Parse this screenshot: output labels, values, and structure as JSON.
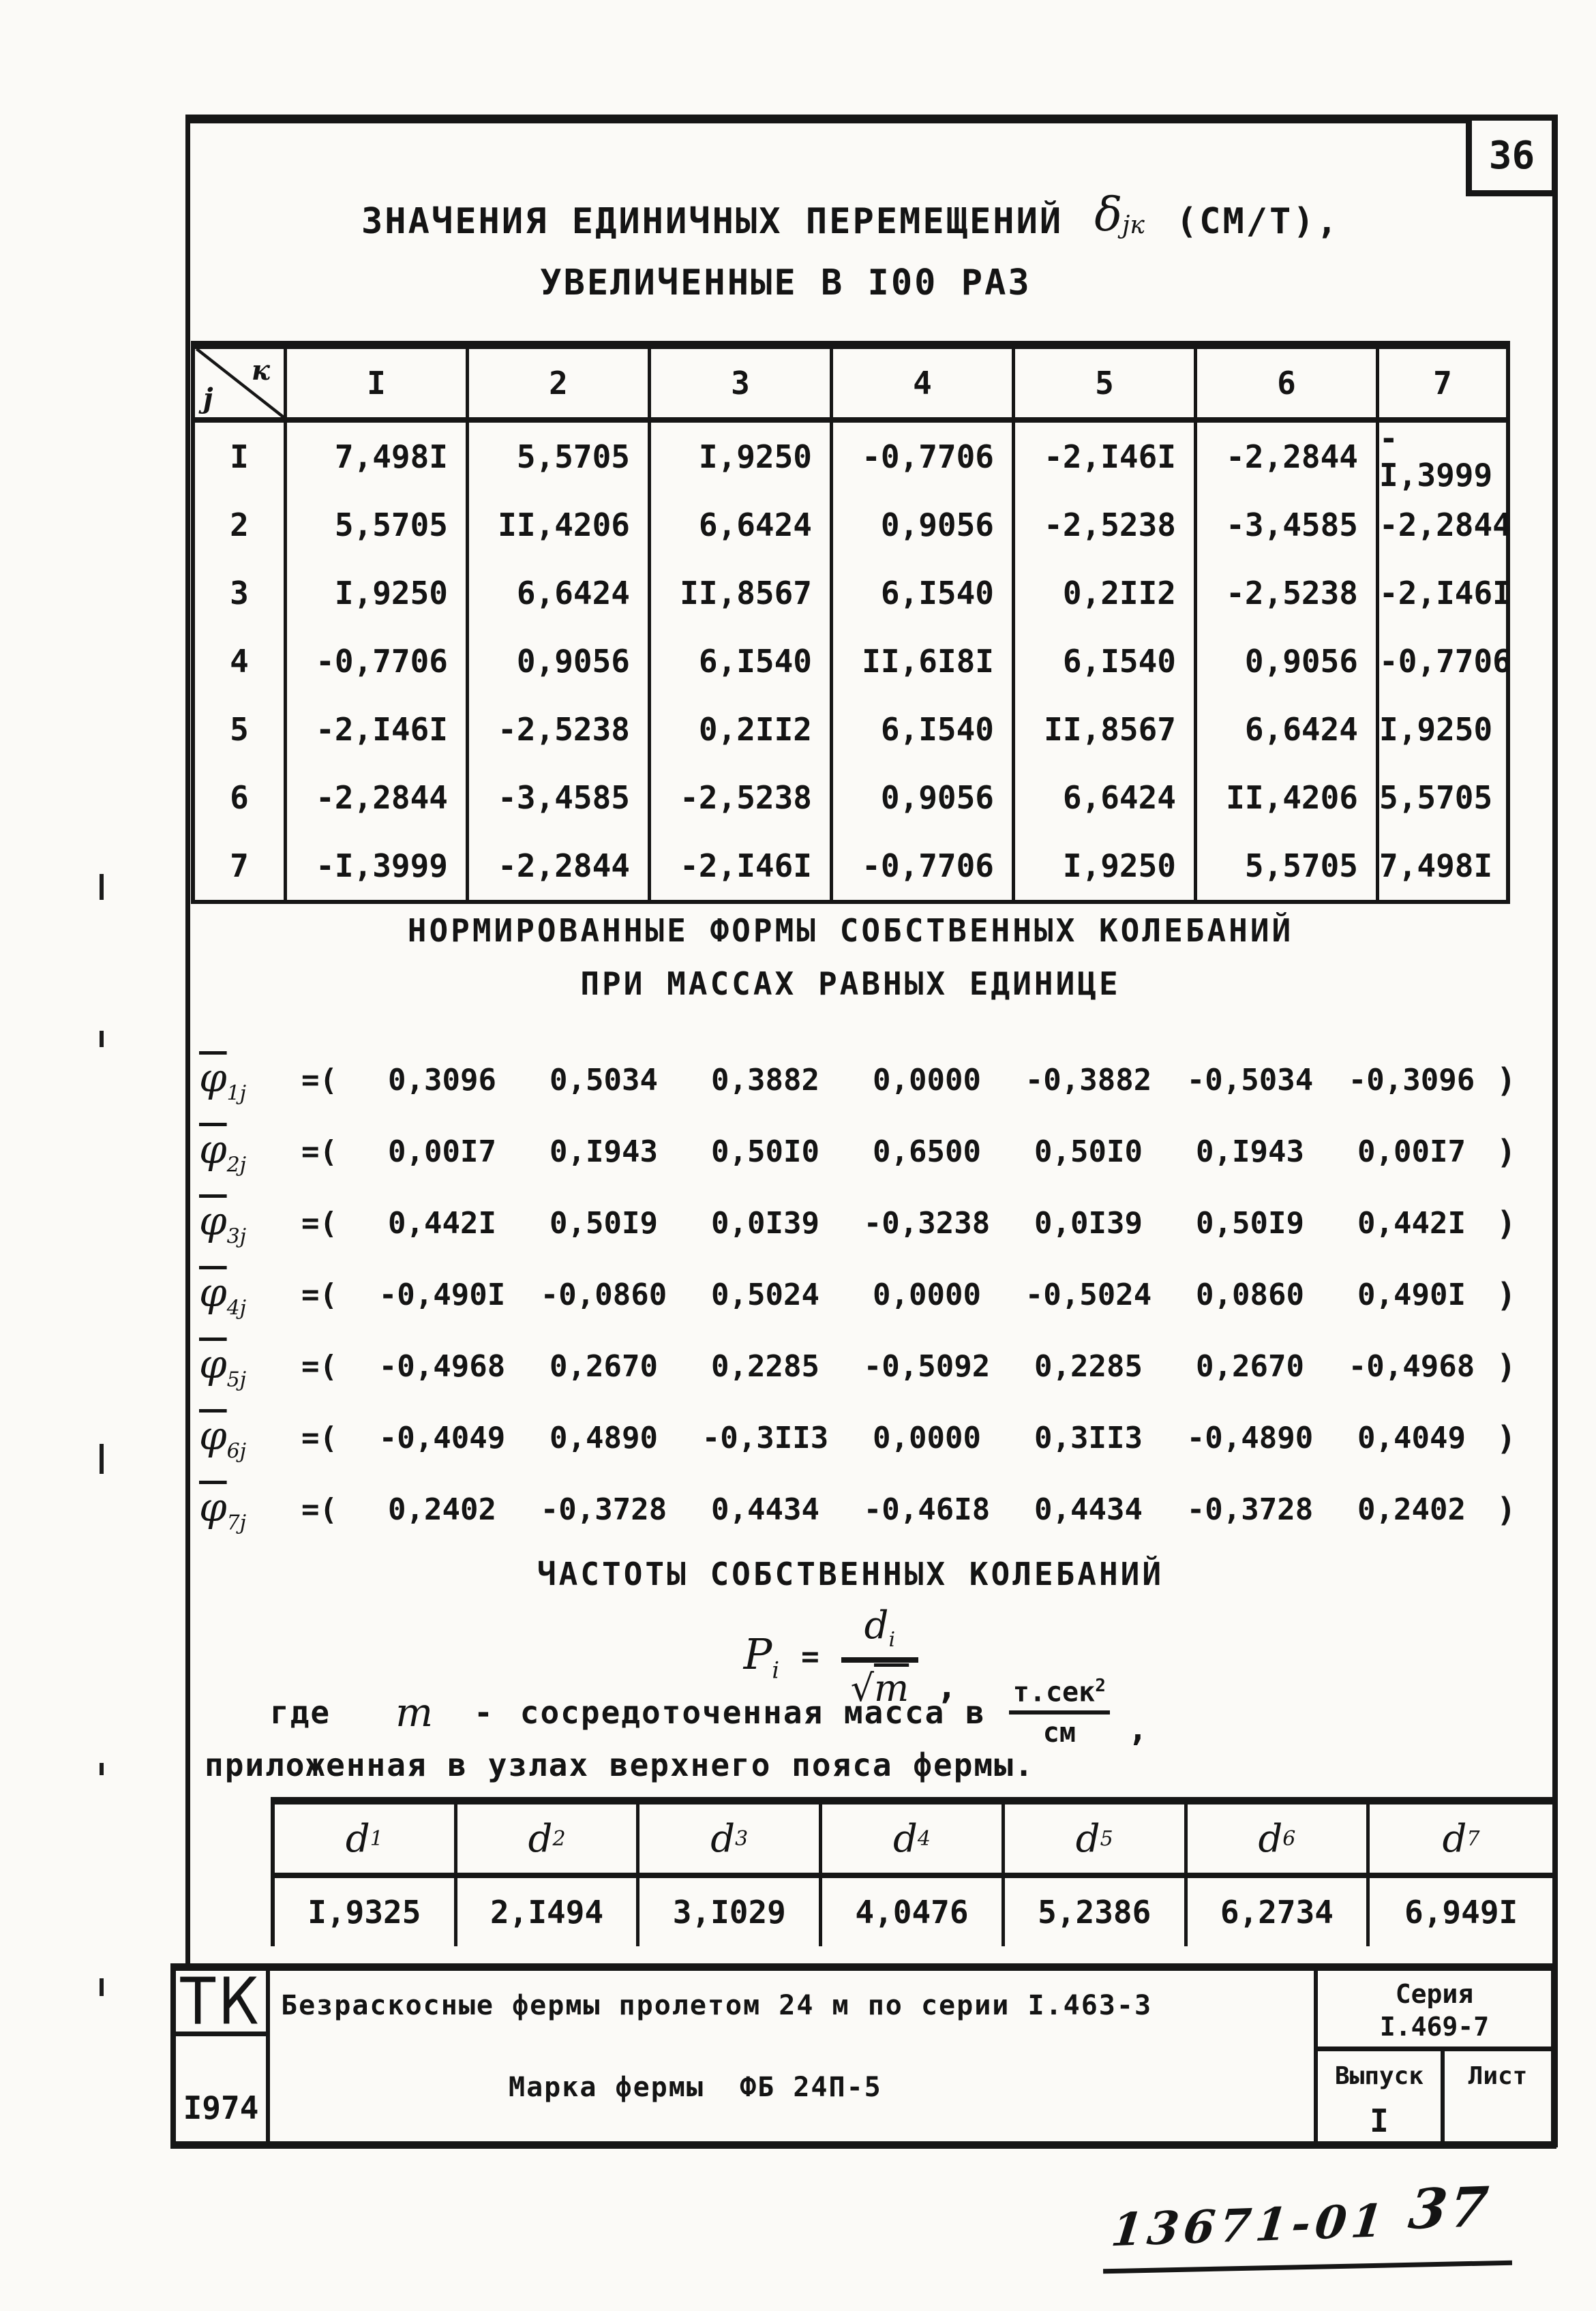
{
  "colors": {
    "paper": "#fbfaf7",
    "ink": "#161616"
  },
  "page": {
    "number": "36",
    "handwritten_part1": "13671-01",
    "handwritten_part2": "37"
  },
  "header": {
    "title_line1_prefix": "ЗНАЧЕНИЯ ЕДИНИЧНЫХ ПЕРЕМЕЩЕНИЙ",
    "delta_symbol": "δ",
    "delta_subscript": "jк",
    "units": "(СМ/Т),",
    "title_line2": "УВЕЛИЧЕННЫЕ В I00 РАЗ"
  },
  "matrix_table": {
    "corner_top": "к",
    "corner_bottom": "j",
    "col_headers": [
      "I",
      "2",
      "3",
      "4",
      "5",
      "6",
      "7"
    ],
    "rows": [
      {
        "label": "I",
        "values": [
          "7,498I",
          "5,5705",
          "I,9250",
          "-0,7706",
          "-2,I46I",
          "-2,2844",
          "-I,3999"
        ]
      },
      {
        "label": "2",
        "values": [
          "5,5705",
          "II,4206",
          "6,6424",
          "0,9056",
          "-2,5238",
          "-3,4585",
          "-2,2844"
        ]
      },
      {
        "label": "3",
        "values": [
          "I,9250",
          "6,6424",
          "II,8567",
          "6,I540",
          "0,2II2",
          "-2,5238",
          "-2,I46I"
        ]
      },
      {
        "label": "4",
        "values": [
          "-0,7706",
          "0,9056",
          "6,I540",
          "II,6I8I",
          "6,I540",
          "0,9056",
          "-0,7706"
        ]
      },
      {
        "label": "5",
        "values": [
          "-2,I46I",
          "-2,5238",
          "0,2II2",
          "6,I540",
          "II,8567",
          "6,6424",
          "I,9250"
        ]
      },
      {
        "label": "6",
        "values": [
          "-2,2844",
          "-3,4585",
          "-2,5238",
          "0,9056",
          "6,6424",
          "II,4206",
          "5,5705"
        ]
      },
      {
        "label": "7",
        "values": [
          "-I,3999",
          "-2,2844",
          "-2,I46I",
          "-0,7706",
          "I,9250",
          "5,5705",
          "7,498I"
        ]
      }
    ]
  },
  "modes_section": {
    "title_line1": "НОРМИРОВАННЫЕ ФОРМЫ СОБСТВЕННЫХ КОЛЕБАНИЙ",
    "title_line2": "ПРИ МАССАХ РАВНЫХ ЕДИНИЦЕ",
    "phi_symbol": "φ",
    "rows": [
      {
        "sub": "1j",
        "open": "=(",
        "close": ")",
        "values": [
          "0,3096",
          "0,5034",
          "0,3882",
          "0,0000",
          "-0,3882",
          "-0,5034",
          "-0,3096"
        ]
      },
      {
        "sub": "2j",
        "open": "=(",
        "close": ")",
        "values": [
          "0,00I7",
          "0,I943",
          "0,50I0",
          "0,6500",
          "0,50I0",
          "0,I943",
          "0,00I7"
        ]
      },
      {
        "sub": "3j",
        "open": "=(",
        "close": ")",
        "values": [
          "0,442I",
          "0,50I9",
          "0,0I39",
          "-0,3238",
          "0,0I39",
          "0,50I9",
          "0,442I"
        ]
      },
      {
        "sub": "4j",
        "open": "=(",
        "close": ")",
        "values": [
          "-0,490I",
          "-0,0860",
          "0,5024",
          "0,0000",
          "-0,5024",
          "0,0860",
          "0,490I"
        ]
      },
      {
        "sub": "5j",
        "open": "=(",
        "close": ")",
        "values": [
          "-0,4968",
          "0,2670",
          "0,2285",
          "-0,5092",
          "0,2285",
          "0,2670",
          "-0,4968"
        ]
      },
      {
        "sub": "6j",
        "open": "=(",
        "close": ")",
        "values": [
          "-0,4049",
          "0,4890",
          "-0,3II3",
          "0,0000",
          "0,3II3",
          "-0,4890",
          "0,4049"
        ]
      },
      {
        "sub": "7j",
        "open": "=(",
        "close": ")",
        "values": [
          "0,2402",
          "-0,3728",
          "0,4434",
          "-0,46I8",
          "0,4434",
          "-0,3728",
          "0,2402"
        ]
      }
    ]
  },
  "freq_section": {
    "title": "ЧАСТОТЫ СОБСТВЕННЫХ КОЛЕБАНИЙ",
    "p": "P",
    "p_sub": "i",
    "equals": "=",
    "d": "d",
    "d_sub": "i",
    "radical": "√",
    "m": "m",
    "comma": ",",
    "where_word": "где",
    "where_m": "m",
    "where_dash": "-",
    "where_text": "сосредоточенная масса в",
    "frac_num": "т.сек",
    "frac_sup": "2",
    "frac_den": "см",
    "frac_tail": ",",
    "where_line2": "приложенная в узлах верхнего пояса фермы."
  },
  "d_table": {
    "symbol": "d",
    "subs": [
      "1",
      "2",
      "3",
      "4",
      "5",
      "6",
      "7"
    ],
    "values": [
      "I,9325",
      "2,I494",
      "3,I029",
      "4,0476",
      "5,2386",
      "6,2734",
      "6,949I"
    ]
  },
  "title_block": {
    "logo": "ТК",
    "year": "I974",
    "line1": "Безраскосные фермы пролетом 24 м по серии I.463-3",
    "line2_label": "Марка фермы",
    "line2_value": "ФБ 24П-5",
    "series_label": "Серия",
    "series_value": "I.469-7",
    "issue_label": "Выпуск",
    "issue_value": "I",
    "sheet_label": "Лист"
  }
}
